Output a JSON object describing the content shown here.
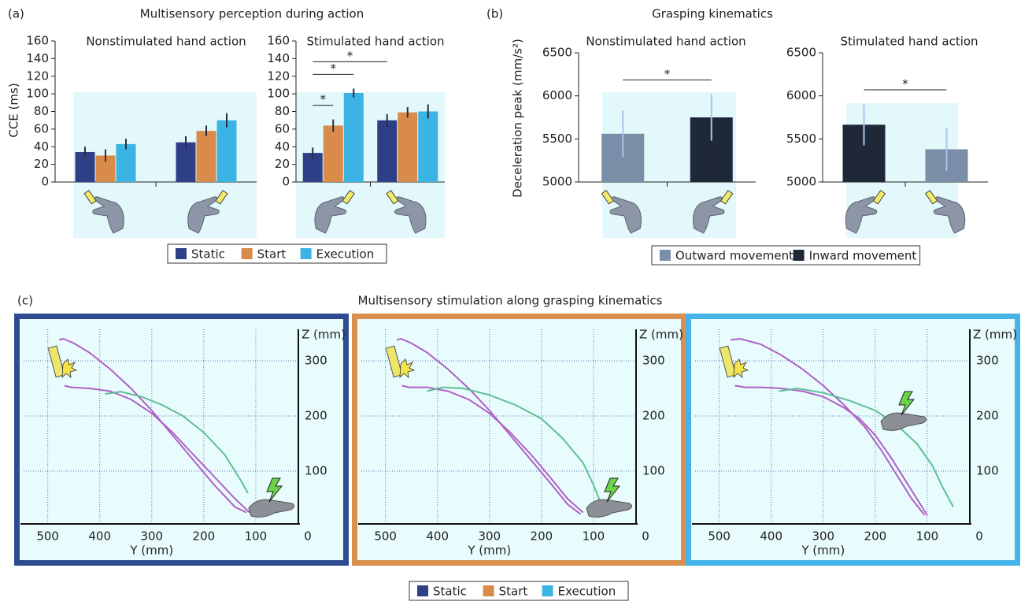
{
  "panels": [
    {
      "label": "(a)",
      "title": "Multisensory perception during action"
    },
    {
      "label": "(b)",
      "title": "Grasping kinematics"
    },
    {
      "label": "(c)",
      "title": "Multisensory stimulation along grasping kinematics"
    }
  ],
  "chart_data": [
    {
      "type": "bar",
      "subtitle": "Nonstimulated hand action",
      "ylabel": "CCE (ms)",
      "categories": [
        null,
        null
      ],
      "ylim": [
        0,
        160
      ],
      "yticks": [
        0,
        20,
        40,
        60,
        80,
        100,
        120,
        140,
        160
      ],
      "series": [
        {
          "name": "Static",
          "color": "#2e3f87",
          "values": [
            34,
            45
          ],
          "errors": [
            6,
            7
          ]
        },
        {
          "name": "Start",
          "color": "#d98b4a",
          "values": [
            30,
            58
          ],
          "errors": [
            7,
            6
          ]
        },
        {
          "name": "Execution",
          "color": "#3bb3e3",
          "values": [
            43,
            70
          ],
          "errors": [
            6,
            8
          ]
        }
      ],
      "significance": []
    },
    {
      "type": "bar",
      "subtitle": "Stimulated hand action",
      "categories": [
        null,
        null
      ],
      "ylim": [
        0,
        160
      ],
      "yticks": [
        0,
        20,
        40,
        60,
        80,
        100,
        120,
        140,
        160
      ],
      "series": [
        {
          "name": "Static",
          "color": "#2e3f87",
          "values": [
            33,
            70
          ],
          "errors": [
            6,
            7
          ]
        },
        {
          "name": "Start",
          "color": "#d98b4a",
          "values": [
            64,
            79
          ],
          "errors": [
            7,
            6
          ]
        },
        {
          "name": "Execution",
          "color": "#3bb3e3",
          "values": [
            101,
            80
          ],
          "errors": [
            5,
            8
          ]
        }
      ],
      "significance": [
        {
          "bars": [
            [
              0,
              0
            ],
            [
              0,
              1
            ]
          ],
          "label": "*"
        },
        {
          "bars": [
            [
              0,
              0
            ],
            [
              0,
              2
            ]
          ],
          "label": "*"
        },
        {
          "bars": [
            [
              0,
              0
            ],
            [
              1,
              0
            ]
          ],
          "label": "*"
        }
      ]
    },
    {
      "type": "bar",
      "subtitle": "Nonstimulated hand action",
      "ylabel": "Deceleration peak (mm/s²)",
      "categories": [
        null,
        null
      ],
      "ylim": [
        5000,
        6500
      ],
      "yticks": [
        5000,
        5500,
        6000,
        6500
      ],
      "series": [
        {
          "name": "Outward movement",
          "color": "#7a8ea8",
          "values": [
            5560,
            null
          ],
          "errors": [
            270,
            null
          ]
        },
        {
          "name": "Inward movement",
          "color": "#1e2838",
          "values": [
            null,
            5750
          ],
          "errors": [
            null,
            270
          ]
        }
      ],
      "significance": [
        {
          "bars": [
            [
              0,
              0
            ],
            [
              1,
              1
            ]
          ],
          "label": "*"
        }
      ]
    },
    {
      "type": "bar",
      "subtitle": "Stimulated hand action",
      "categories": [
        null,
        null
      ],
      "ylim": [
        5000,
        6500
      ],
      "yticks": [
        5000,
        5500,
        6000,
        6500
      ],
      "series": [
        {
          "name": "Inward movement",
          "color": "#1e2838",
          "values": [
            5665,
            null
          ],
          "errors": [
            240,
            null
          ]
        },
        {
          "name": "Outward movement",
          "color": "#7a8ea8",
          "values": [
            null,
            5380
          ],
          "errors": [
            null,
            250
          ]
        }
      ],
      "significance": [
        {
          "bars": [
            [
              0,
              0
            ],
            [
              1,
              1
            ]
          ],
          "label": "*"
        }
      ]
    },
    {
      "type": "line",
      "xlabel": "Y (mm)",
      "ylabel": "Z (mm)",
      "frame_color": "#2e4b92",
      "xlim": [
        560,
        0
      ],
      "ylim": [
        0,
        360
      ],
      "xticks": [
        500,
        400,
        300,
        200,
        100,
        0
      ],
      "yticks": [
        100,
        200,
        300
      ],
      "series": [
        {
          "color": "#b060c4",
          "x": [
            478,
            470,
            450,
            420,
            380,
            340,
            300,
            260,
            220,
            180,
            140,
            118
          ],
          "values": [
            338,
            340,
            332,
            315,
            285,
            250,
            210,
            165,
            120,
            75,
            35,
            25
          ]
        },
        {
          "color": "#b060c4",
          "x": [
            468,
            455,
            420,
            380,
            340,
            300,
            260,
            220,
            180,
            140,
            112
          ],
          "values": [
            255,
            252,
            250,
            245,
            230,
            205,
            170,
            130,
            90,
            50,
            25
          ]
        },
        {
          "color": "#5fbf94",
          "x": [
            390,
            360,
            320,
            280,
            240,
            200,
            160,
            130,
            115
          ],
          "values": [
            240,
            244,
            235,
            220,
            200,
            170,
            130,
            85,
            60
          ]
        }
      ]
    },
    {
      "type": "line",
      "xlabel": "Y (mm)",
      "ylabel": "Z (mm)",
      "frame_color": "#d9904f",
      "xlim": [
        560,
        0
      ],
      "ylim": [
        0,
        360
      ],
      "xticks": [
        500,
        400,
        300,
        200,
        100,
        0
      ],
      "yticks": [
        100,
        200,
        300
      ],
      "series": [
        {
          "color": "#b060c4",
          "x": [
            478,
            470,
            450,
            420,
            380,
            340,
            300,
            260,
            220,
            180,
            150,
            125
          ],
          "values": [
            338,
            340,
            332,
            315,
            285,
            250,
            210,
            165,
            120,
            75,
            40,
            22
          ]
        },
        {
          "color": "#b060c4",
          "x": [
            468,
            455,
            420,
            380,
            340,
            300,
            260,
            220,
            180,
            150,
            120
          ],
          "values": [
            255,
            252,
            252,
            245,
            230,
            205,
            170,
            130,
            85,
            50,
            25
          ]
        },
        {
          "color": "#5fbf94",
          "x": [
            420,
            390,
            350,
            300,
            250,
            200,
            160,
            120,
            100,
            85
          ],
          "values": [
            245,
            252,
            250,
            238,
            220,
            195,
            160,
            115,
            75,
            40
          ]
        }
      ]
    },
    {
      "type": "line",
      "xlabel": "Y (mm)",
      "ylabel": "Z (mm)",
      "frame_color": "#45b3e8",
      "xlim": [
        560,
        0
      ],
      "ylim": [
        0,
        360
      ],
      "xticks": [
        500,
        400,
        300,
        200,
        100,
        0
      ],
      "yticks": [
        100,
        200,
        300
      ],
      "series": [
        {
          "color": "#b060c4",
          "x": [
            478,
            460,
            420,
            380,
            340,
            300,
            260,
            220,
            190,
            160,
            130,
            105
          ],
          "values": [
            338,
            340,
            330,
            310,
            285,
            255,
            220,
            180,
            140,
            95,
            50,
            20
          ]
        },
        {
          "color": "#b060c4",
          "x": [
            470,
            450,
            420,
            380,
            340,
            300,
            260,
            230,
            200,
            170,
            140,
            110,
            100
          ],
          "values": [
            255,
            252,
            252,
            250,
            245,
            235,
            215,
            195,
            165,
            125,
            80,
            35,
            20
          ]
        },
        {
          "color": "#5fbf94",
          "x": [
            385,
            350,
            300,
            250,
            200,
            160,
            120,
            90,
            70,
            50
          ],
          "values": [
            245,
            250,
            242,
            228,
            210,
            185,
            150,
            110,
            70,
            35
          ]
        }
      ]
    }
  ]
}
